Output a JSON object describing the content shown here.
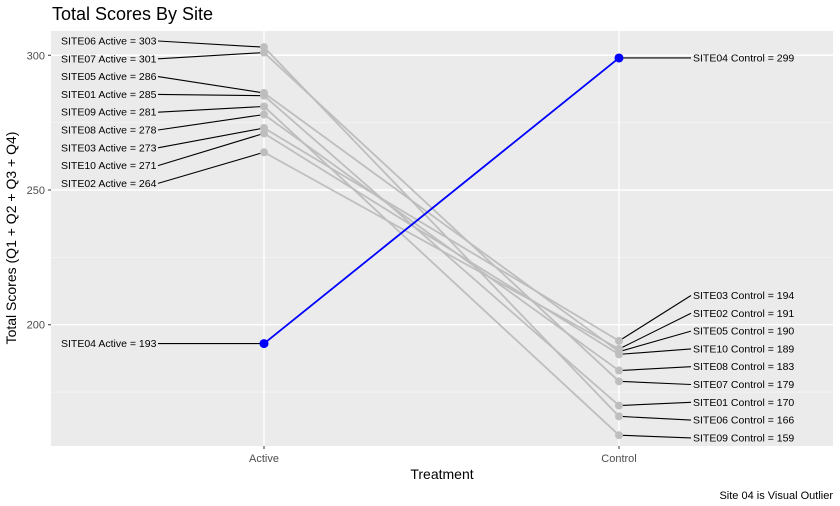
{
  "chart_data": {
    "type": "line",
    "title": "Total Scores By Site",
    "xlabel": "Treatment",
    "ylabel": "Total Scores (Q1 + Q2 + Q3 + Q4)",
    "caption": "Site 04 is Visual Outlier",
    "categories": [
      "Active",
      "Control"
    ],
    "ylim": [
      155,
      309
    ],
    "yticks": [
      200,
      250,
      300
    ],
    "grid": true,
    "highlight_color": "#0000ff",
    "base_color": "#bebebe",
    "panel_color": "#ebebeb",
    "series": [
      {
        "site": "SITE01",
        "values": [
          285,
          170
        ],
        "labels": [
          "SITE01 Active = 285",
          "SITE01 Control = 170"
        ],
        "highlight": false
      },
      {
        "site": "SITE02",
        "values": [
          264,
          191
        ],
        "labels": [
          "SITE02 Active = 264",
          "SITE02 Control = 191"
        ],
        "highlight": false
      },
      {
        "site": "SITE03",
        "values": [
          273,
          194
        ],
        "labels": [
          "SITE03 Active = 273",
          "SITE03 Control = 194"
        ],
        "highlight": false
      },
      {
        "site": "SITE04",
        "values": [
          193,
          299
        ],
        "labels": [
          "SITE04 Active = 193",
          "SITE04 Control = 299"
        ],
        "highlight": true
      },
      {
        "site": "SITE05",
        "values": [
          286,
          190
        ],
        "labels": [
          "SITE05 Active = 286",
          "SITE05 Control = 190"
        ],
        "highlight": false
      },
      {
        "site": "SITE06",
        "values": [
          303,
          166
        ],
        "labels": [
          "SITE06 Active = 303",
          "SITE06 Control = 166"
        ],
        "highlight": false
      },
      {
        "site": "SITE07",
        "values": [
          301,
          179
        ],
        "labels": [
          "SITE07 Active = 301",
          "SITE07 Control = 179"
        ],
        "highlight": false
      },
      {
        "site": "SITE08",
        "values": [
          278,
          183
        ],
        "labels": [
          "SITE08 Active = 278",
          "SITE08 Control = 183"
        ],
        "highlight": false
      },
      {
        "site": "SITE09",
        "values": [
          281,
          159
        ],
        "labels": [
          "SITE09 Active = 281",
          "SITE09 Control = 159"
        ],
        "highlight": false
      },
      {
        "site": "SITE10",
        "values": [
          271,
          189
        ],
        "labels": [
          "SITE10 Active = 271",
          "SITE10 Control = 189"
        ],
        "highlight": false
      }
    ],
    "label_order": {
      "Active": [
        "SITE06",
        "SITE07",
        "SITE05",
        "SITE01",
        "SITE09",
        "SITE08",
        "SITE03",
        "SITE10",
        "SITE02"
      ],
      "Control": [
        "SITE03",
        "SITE02",
        "SITE05",
        "SITE10",
        "SITE08",
        "SITE07",
        "SITE01",
        "SITE06",
        "SITE09"
      ]
    }
  }
}
